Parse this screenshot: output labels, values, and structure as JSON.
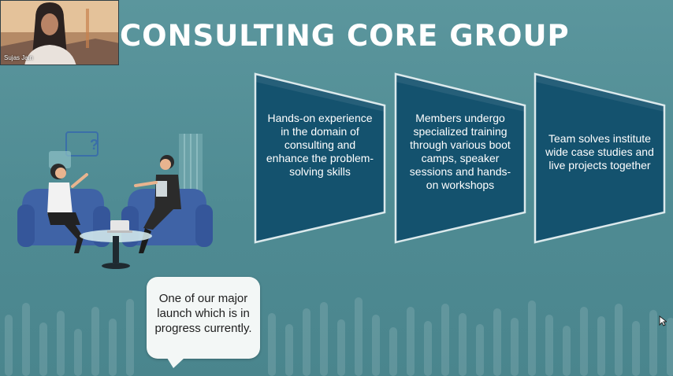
{
  "meeting": {
    "participant_name": "Sujas Jain"
  },
  "slide": {
    "title": "CONSULTING CORE GROUP",
    "cards": [
      {
        "text": "Hands-on experience in the domain of consulting and enhance the problem-solving skills"
      },
      {
        "text": "Members undergo specialized training through various boot camps, speaker sessions and hands-on workshops"
      },
      {
        "text": "Team solves institute wide case studies and live projects together"
      }
    ],
    "callout": {
      "text": "One of our major launch which is in progress currently."
    }
  },
  "colors": {
    "background": "#4f8b93",
    "card_fill": "#14526e",
    "card_border": "#dbe9ec",
    "sofa": "#3f63a6",
    "callout_bg": "#f3f7f6"
  }
}
